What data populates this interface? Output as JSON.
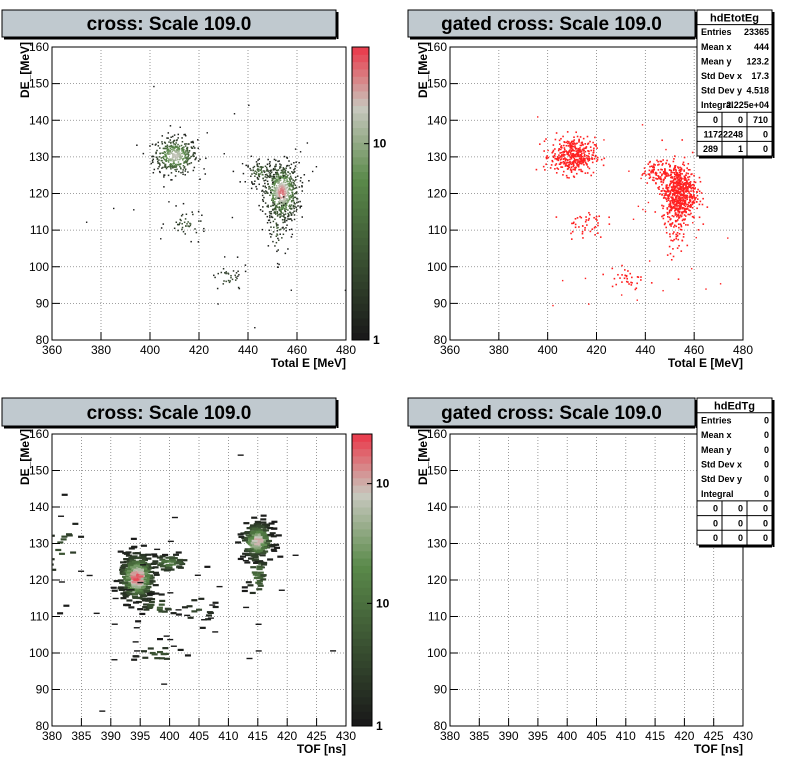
{
  "colors": {
    "title_bg": "#c0c9cf",
    "grid": "#808080",
    "gated_marks": "#ff2020",
    "palette_low": "#1a1a1a",
    "palette_mid": "#5a8a4a",
    "palette_high": "#e84050"
  },
  "chart_data": [
    {
      "type": "heatmap",
      "title": "cross: Scale 109.0",
      "xlabel": "Total E [MeV]",
      "ylabel": "DE_[MeV]",
      "xlim": [
        360,
        480
      ],
      "ylim": [
        80,
        160
      ],
      "x_ticks": [
        360,
        380,
        400,
        420,
        440,
        460,
        480
      ],
      "y_ticks": [
        80,
        90,
        100,
        110,
        120,
        130,
        140,
        150,
        160
      ],
      "grid": true,
      "colorbar": {
        "scale": "log",
        "labels": [
          "1",
          "10"
        ]
      },
      "clusters": [
        {
          "x": 410,
          "y": 130.5,
          "sx": 4.5,
          "sy": 2.5,
          "peak": 18
        },
        {
          "x": 453.5,
          "y": 120.5,
          "sx": 3.5,
          "sy": 4.0,
          "peak": 30
        },
        {
          "x": 445,
          "y": 126,
          "sx": 3,
          "sy": 1.5,
          "peak": 4
        },
        {
          "x": 452,
          "y": 112,
          "sx": 2,
          "sy": 5,
          "peak": 3
        },
        {
          "x": 415,
          "y": 112,
          "sx": 4,
          "sy": 2,
          "peak": 2
        },
        {
          "x": 432,
          "y": 97,
          "sx": 4,
          "sy": 2,
          "peak": 1.5
        }
      ]
    },
    {
      "type": "scatter",
      "title": "gated cross: Scale 109.0",
      "xlabel": "Total E [MeV]",
      "ylabel": "DE_[MeV]",
      "xlim": [
        360,
        480
      ],
      "ylim": [
        80,
        160
      ],
      "x_ticks": [
        360,
        380,
        400,
        420,
        440,
        460,
        480
      ],
      "y_ticks": [
        80,
        90,
        100,
        110,
        120,
        130,
        140,
        150,
        160
      ],
      "grid": true,
      "clusters": [
        {
          "x": 410,
          "y": 130.5,
          "sx": 4.5,
          "sy": 2.5,
          "peak": 18
        },
        {
          "x": 453.5,
          "y": 120.5,
          "sx": 3.5,
          "sy": 4.0,
          "peak": 30
        },
        {
          "x": 445,
          "y": 126,
          "sx": 3,
          "sy": 1.5,
          "peak": 4
        },
        {
          "x": 452,
          "y": 112,
          "sx": 2,
          "sy": 5,
          "peak": 3
        },
        {
          "x": 415,
          "y": 112,
          "sx": 4,
          "sy": 2,
          "peak": 2
        },
        {
          "x": 432,
          "y": 97,
          "sx": 4,
          "sy": 2,
          "peak": 1.5
        }
      ],
      "stats": {
        "name": "hdEtotEg",
        "rows": [
          [
            "Entries",
            "23365"
          ],
          [
            "Mean x",
            "444"
          ],
          [
            "Mean y",
            "123.2"
          ],
          [
            "Std Dev x",
            "17.3"
          ],
          [
            "Std Dev y",
            "4.518"
          ],
          [
            "Integral",
            "2.225e+04"
          ]
        ],
        "grid": [
          [
            "0",
            "0",
            "710"
          ],
          [
            "117",
            "22248",
            "0"
          ],
          [
            "289",
            "1",
            "0"
          ]
        ]
      }
    },
    {
      "type": "heatmap",
      "title": "cross: Scale 109.0",
      "xlabel": "TOF [ns]",
      "ylabel": "DE_[MeV]",
      "xlim": [
        380,
        430
      ],
      "ylim": [
        80,
        160
      ],
      "x_ticks": [
        380,
        385,
        390,
        395,
        400,
        405,
        410,
        415,
        420,
        425,
        430
      ],
      "y_ticks": [
        80,
        90,
        100,
        110,
        120,
        130,
        140,
        150,
        160
      ],
      "grid": true,
      "colorbar": {
        "scale": "log",
        "labels": [
          "1",
          "10",
          "10"
        ]
      },
      "clusters": [
        {
          "x": 394.5,
          "y": 121,
          "sx": 1.4,
          "sy": 3.2,
          "peak": 40
        },
        {
          "x": 415,
          "y": 131,
          "sx": 1.2,
          "sy": 2.5,
          "peak": 25
        },
        {
          "x": 400,
          "y": 125,
          "sx": 1.5,
          "sy": 1.2,
          "peak": 6
        },
        {
          "x": 398,
          "y": 113,
          "sx": 1.5,
          "sy": 1.5,
          "peak": 3
        },
        {
          "x": 415,
          "y": 122,
          "sx": 0.8,
          "sy": 4,
          "peak": 4
        },
        {
          "x": 382,
          "y": 128,
          "sx": 1.5,
          "sy": 6,
          "peak": 2
        },
        {
          "x": 398,
          "y": 100,
          "sx": 2,
          "sy": 1.5,
          "peak": 2
        },
        {
          "x": 405,
          "y": 112,
          "sx": 1.5,
          "sy": 2,
          "peak": 1.5
        }
      ]
    },
    {
      "type": "heatmap",
      "title": "gated cross: Scale 109.0",
      "xlabel": "TOF [ns]",
      "ylabel": "DE_[MeV]",
      "xlim": [
        380,
        430
      ],
      "ylim": [
        80,
        160
      ],
      "x_ticks": [
        380,
        385,
        390,
        395,
        400,
        405,
        410,
        415,
        420,
        425,
        430
      ],
      "y_ticks": [
        80,
        90,
        100,
        110,
        120,
        130,
        140,
        150,
        160
      ],
      "grid": true,
      "clusters": [],
      "stats": {
        "name": "hdEdTg",
        "rows": [
          [
            "Entries",
            "0"
          ],
          [
            "Mean x",
            "0"
          ],
          [
            "Mean y",
            "0"
          ],
          [
            "Std Dev x",
            "0"
          ],
          [
            "Std Dev y",
            "0"
          ],
          [
            "Integral",
            "0"
          ]
        ],
        "grid": [
          [
            "0",
            "0",
            "0"
          ],
          [
            "0",
            "0",
            "0"
          ],
          [
            "0",
            "0",
            "0"
          ]
        ]
      }
    }
  ]
}
